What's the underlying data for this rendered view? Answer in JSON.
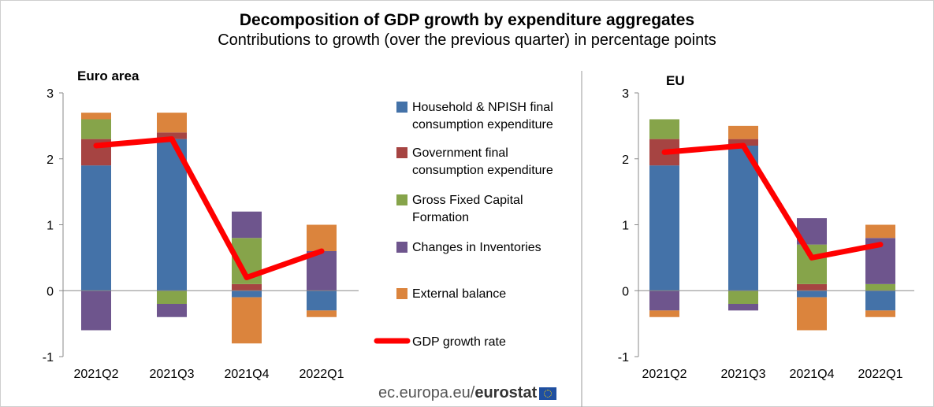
{
  "header": {
    "title": "Decomposition of GDP growth by expenditure aggregates",
    "subtitle": "Contributions to growth (over the previous quarter) in percentage points"
  },
  "footer": {
    "site": "ec.europa.eu/",
    "brand": "eurostat"
  },
  "legend": [
    {
      "lines": [
        "Household & NPISH final",
        "consumption expenditure"
      ],
      "color": "#4472A8",
      "kind": "box"
    },
    {
      "lines": [
        "Government final",
        "consumption expenditure"
      ],
      "color": "#A64442",
      "kind": "box"
    },
    {
      "lines": [
        "Gross Fixed Capital",
        "Formation"
      ],
      "color": "#86A44A",
      "kind": "box"
    },
    {
      "lines": [
        "Changes in Inventories"
      ],
      "color": "#6E558D",
      "kind": "box"
    },
    {
      "lines": [
        "External balance"
      ],
      "color": "#DB843D",
      "kind": "box"
    },
    {
      "lines": [
        "GDP growth rate"
      ],
      "color": "#FF0000",
      "kind": "line"
    }
  ],
  "chart_data": [
    {
      "type": "bar",
      "stacked": true,
      "title": "Euro area",
      "categories": [
        "2021Q2",
        "2021Q3",
        "2021Q4",
        "2022Q1"
      ],
      "ylim": [
        -1,
        3
      ],
      "yticks": [
        "-1",
        "0",
        "1",
        "2",
        "3"
      ],
      "series": [
        {
          "name": "Household & NPISH final consumption expenditure",
          "color": "#4472A8",
          "values": [
            1.9,
            2.3,
            -0.1,
            -0.3
          ]
        },
        {
          "name": "Government final consumption expenditure",
          "color": "#A64442",
          "values": [
            0.4,
            0.1,
            0.1,
            0.0
          ]
        },
        {
          "name": "Gross Fixed Capital Formation",
          "color": "#86A44A",
          "values": [
            0.3,
            -0.2,
            0.7,
            0.0
          ]
        },
        {
          "name": "Changes in Inventories",
          "color": "#6E558D",
          "values": [
            -0.6,
            -0.2,
            0.4,
            0.6
          ]
        },
        {
          "name": "External balance",
          "color": "#DB843D",
          "values": [
            0.1,
            0.3,
            -0.7,
            0.4
          ]
        }
      ],
      "negative_overrides": {
        "External balance": [
          0,
          0,
          0,
          -0.1
        ]
      },
      "line": {
        "name": "GDP growth rate",
        "color": "#FF0000",
        "values": [
          2.2,
          2.3,
          0.2,
          0.6
        ]
      }
    },
    {
      "type": "bar",
      "stacked": true,
      "title": "EU",
      "categories": [
        "2021Q2",
        "2021Q3",
        "2021Q4",
        "2022Q1"
      ],
      "ylim": [
        -1,
        3
      ],
      "yticks": [
        "-1",
        "0",
        "1",
        "2",
        "3"
      ],
      "series": [
        {
          "name": "Household & NPISH final consumption expenditure",
          "color": "#4472A8",
          "values": [
            1.9,
            2.2,
            -0.1,
            -0.3
          ]
        },
        {
          "name": "Government final consumption expenditure",
          "color": "#A64442",
          "values": [
            0.4,
            0.1,
            0.1,
            0.0
          ]
        },
        {
          "name": "Gross Fixed Capital Formation",
          "color": "#86A44A",
          "values": [
            0.3,
            -0.2,
            0.6,
            0.1
          ]
        },
        {
          "name": "Changes in Inventories",
          "color": "#6E558D",
          "values": [
            -0.3,
            -0.1,
            0.4,
            0.7
          ]
        },
        {
          "name": "External balance",
          "color": "#DB843D",
          "values": [
            -0.1,
            0.2,
            -0.5,
            0.2
          ]
        }
      ],
      "negative_overrides": {
        "External balance": [
          0,
          0,
          0,
          -0.1
        ]
      },
      "line": {
        "name": "GDP growth rate",
        "color": "#FF0000",
        "values": [
          2.1,
          2.2,
          0.5,
          0.7
        ]
      }
    }
  ]
}
